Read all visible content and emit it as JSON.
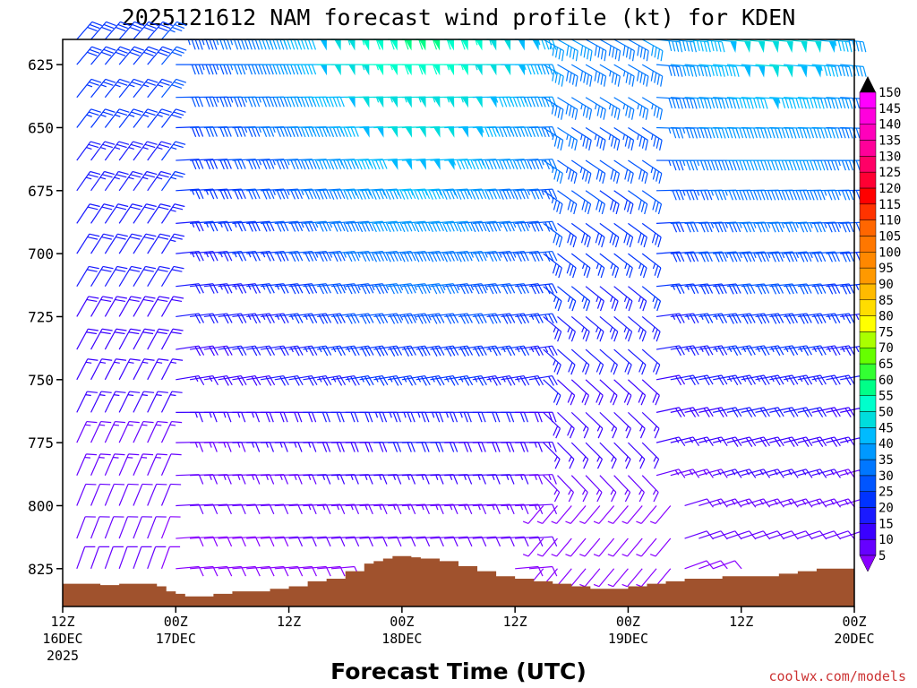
{
  "chart_data": {
    "type": "wind-barb-profile",
    "title": "2025121612 NAM forecast wind profile (kt) for KDEN",
    "xlabel": "Forecast Time (UTC)",
    "ylabel": "",
    "credit": "coolwx.com/models",
    "x_axis": {
      "range_hours": [
        0,
        84
      ],
      "ticks": [
        {
          "hour": 0,
          "line1": "12Z",
          "line2": "16DEC",
          "line3": "2025"
        },
        {
          "hour": 12,
          "line1": "00Z",
          "line2": "17DEC",
          "line3": ""
        },
        {
          "hour": 24,
          "line1": "12Z",
          "line2": "",
          "line3": ""
        },
        {
          "hour": 36,
          "line1": "00Z",
          "line2": "18DEC",
          "line3": ""
        },
        {
          "hour": 48,
          "line1": "12Z",
          "line2": "",
          "line3": ""
        },
        {
          "hour": 60,
          "line1": "00Z",
          "line2": "19DEC",
          "line3": ""
        },
        {
          "hour": 72,
          "line1": "12Z",
          "line2": "",
          "line3": ""
        },
        {
          "hour": 84,
          "line1": "00Z",
          "line2": "20DEC",
          "line3": ""
        }
      ]
    },
    "y_axis": {
      "unit": "hPa",
      "range": [
        615,
        840
      ],
      "ticks": [
        625,
        650,
        675,
        700,
        725,
        750,
        775,
        800,
        825
      ]
    },
    "colorbar": {
      "labels": [
        5,
        10,
        15,
        20,
        25,
        30,
        35,
        40,
        45,
        50,
        55,
        60,
        65,
        70,
        75,
        80,
        85,
        90,
        95,
        100,
        105,
        110,
        115,
        120,
        125,
        130,
        135,
        140,
        145,
        150
      ],
      "colors": [
        "#8800ff",
        "#6600ff",
        "#3a00ff",
        "#1a1aff",
        "#0033ff",
        "#0055ff",
        "#0077ff",
        "#0099ff",
        "#00bbff",
        "#00dddd",
        "#00ffcc",
        "#00ff88",
        "#33ff33",
        "#66ff00",
        "#aaff00",
        "#ffff00",
        "#ffdd00",
        "#ffbb00",
        "#ff9900",
        "#ff8800",
        "#ff7700",
        "#ff6600",
        "#ff3300",
        "#ff0000",
        "#ff0033",
        "#ff0066",
        "#ff0099",
        "#ff00bb",
        "#ff00dd",
        "#ff00ff"
      ]
    },
    "terrain": {
      "color": "#a0522d",
      "surface_pressure": [
        [
          0,
          831
        ],
        [
          2,
          831
        ],
        [
          4,
          831.5
        ],
        [
          6,
          831
        ],
        [
          8,
          831
        ],
        [
          10,
          832
        ],
        [
          11,
          834
        ],
        [
          12,
          835
        ],
        [
          13,
          836
        ],
        [
          14,
          836
        ],
        [
          16,
          835
        ],
        [
          18,
          834
        ],
        [
          20,
          834
        ],
        [
          22,
          833
        ],
        [
          24,
          832
        ],
        [
          26,
          830
        ],
        [
          28,
          829
        ],
        [
          30,
          826
        ],
        [
          32,
          823
        ],
        [
          33,
          822
        ],
        [
          34,
          821
        ],
        [
          35,
          820
        ],
        [
          36,
          820
        ],
        [
          37,
          820.5
        ],
        [
          38,
          821
        ],
        [
          40,
          822
        ],
        [
          42,
          824
        ],
        [
          44,
          826
        ],
        [
          46,
          828
        ],
        [
          48,
          829
        ],
        [
          50,
          830
        ],
        [
          52,
          831
        ],
        [
          54,
          832
        ],
        [
          56,
          833
        ],
        [
          58,
          833
        ],
        [
          60,
          832
        ],
        [
          62,
          831
        ],
        [
          64,
          830
        ],
        [
          66,
          829
        ],
        [
          68,
          829
        ],
        [
          70,
          828
        ],
        [
          72,
          828
        ],
        [
          74,
          828
        ],
        [
          76,
          827
        ],
        [
          78,
          826
        ],
        [
          80,
          825
        ],
        [
          82,
          825
        ],
        [
          84,
          825
        ]
      ]
    },
    "barb_pressures": [
      615,
      625,
      638,
      650,
      663,
      675,
      688,
      700,
      713,
      725,
      738,
      750,
      763,
      775,
      788,
      800,
      813,
      825
    ],
    "barb_times": [
      0,
      1.5,
      3,
      4.5,
      6,
      7.5,
      9,
      10.5,
      12,
      13.5,
      15,
      16.5,
      18,
      19.5,
      21,
      22.5,
      24,
      25.5,
      27,
      28.5,
      30,
      31.5,
      33,
      34.5,
      36,
      37.5,
      39,
      40.5,
      42,
      43.5,
      45,
      46.5,
      48,
      49.5,
      51,
      52.5,
      54,
      55.5,
      57,
      58.5,
      60,
      61.5,
      63,
      64.5,
      66,
      67.5,
      69,
      70.5,
      72,
      73.5,
      75,
      76.5,
      78,
      79.5,
      81,
      82.5,
      84
    ]
  }
}
